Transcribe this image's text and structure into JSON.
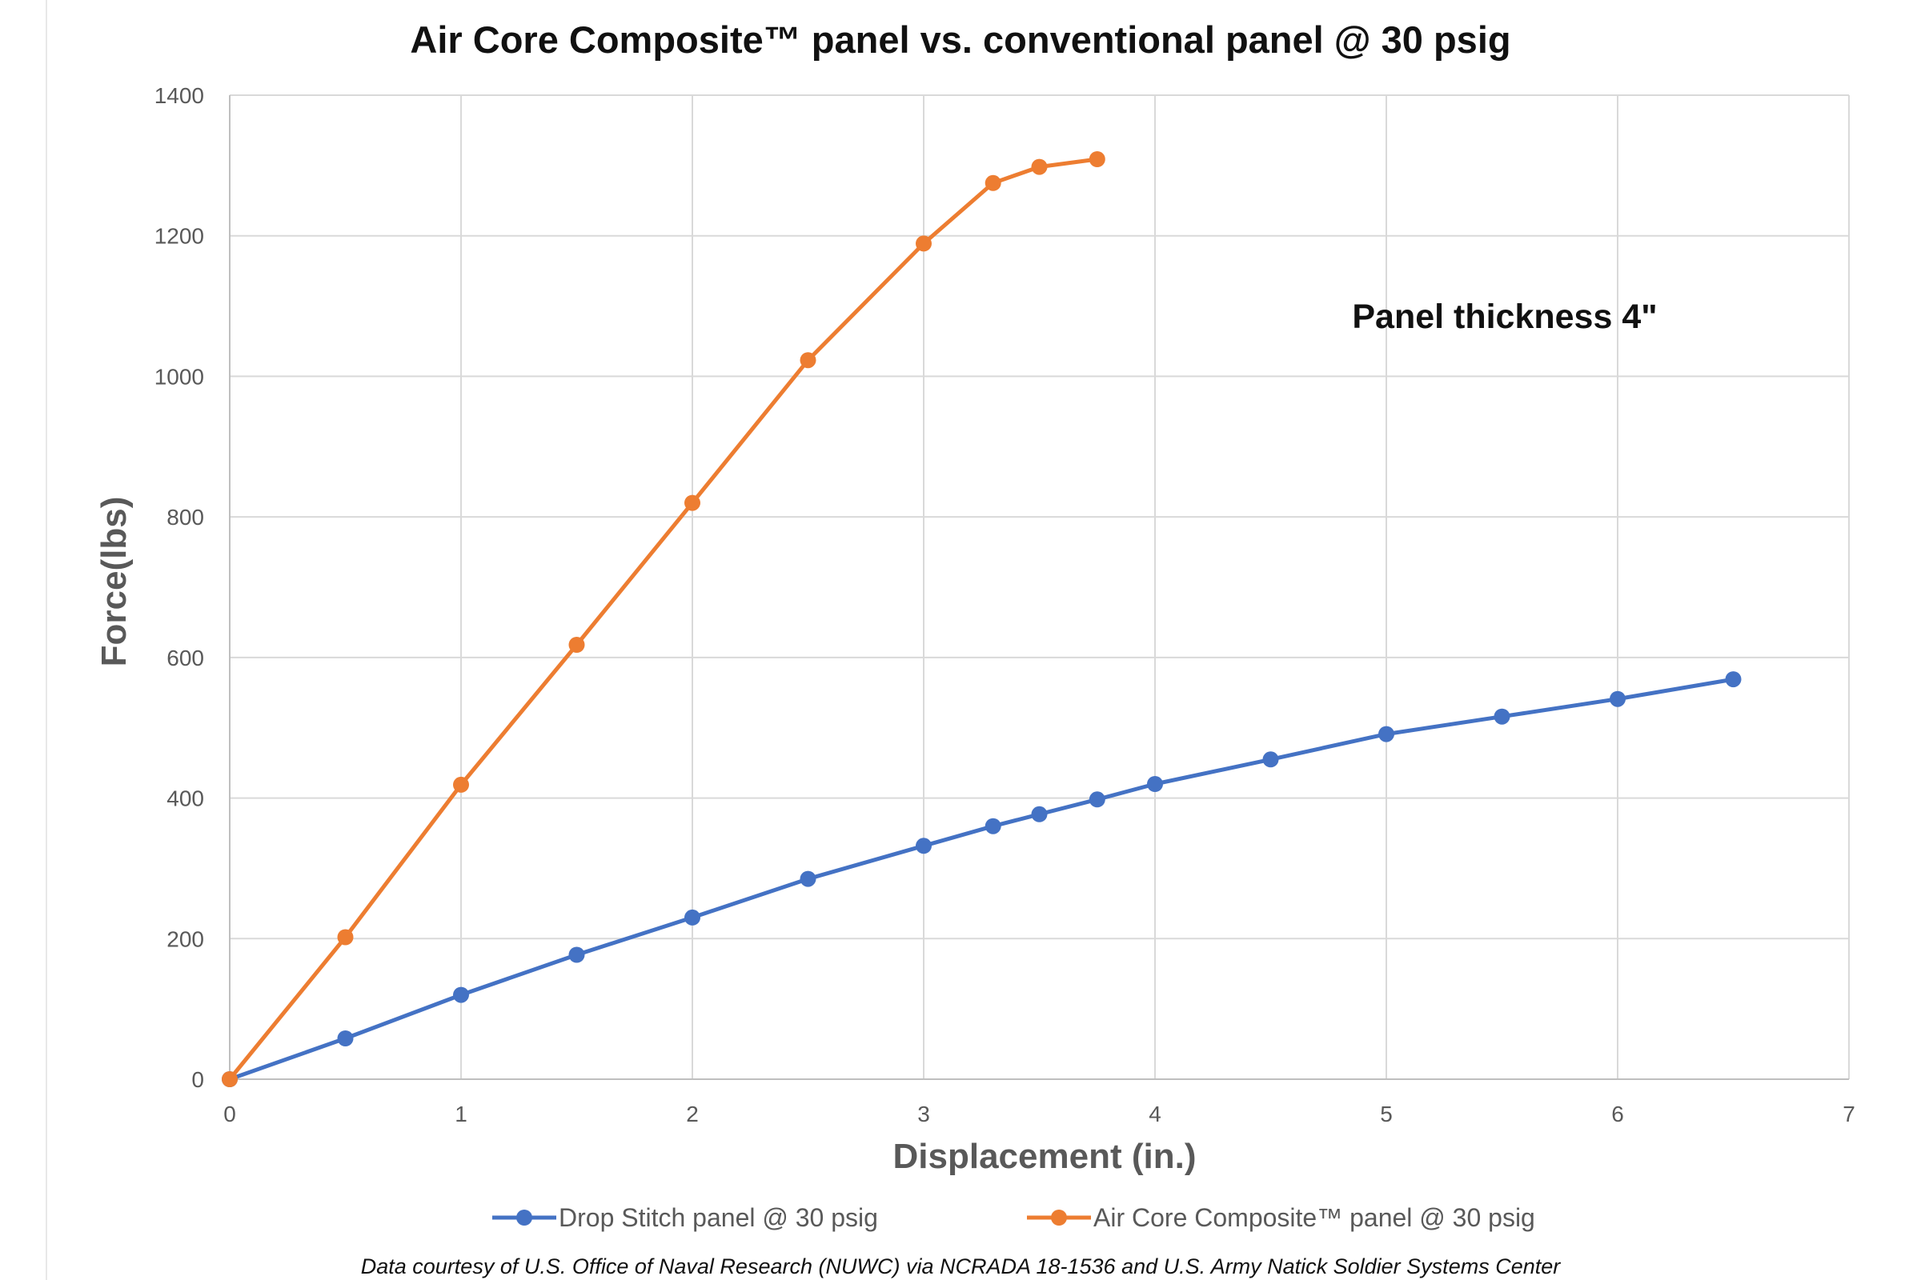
{
  "chart_data": {
    "type": "line",
    "title": "Air Core Composite™ panel vs. conventional panel  @ 30 psig",
    "xlabel": "Displacement (in.)",
    "ylabel": "Force(lbs)",
    "xlim": [
      0,
      7
    ],
    "ylim": [
      0,
      1400
    ],
    "x_ticks": [
      "0",
      "1",
      "2",
      "3",
      "4",
      "5",
      "6",
      "7"
    ],
    "y_ticks": [
      "0",
      "200",
      "400",
      "600",
      "800",
      "1000",
      "1200",
      "1400"
    ],
    "grid": true,
    "legend_position": "bottom",
    "annotation": "Panel thickness 4\"",
    "footnote": "Data courtesy of U.S. Office of Naval Research (NUWC) via NCRADA 18-1536 and U.S. Army Natick Soldier Systems Center",
    "series": [
      {
        "name": "Drop Stitch panel @ 30 psig",
        "color": "#4472c4",
        "x": [
          0,
          0.5,
          1,
          1.5,
          2,
          2.5,
          3,
          3.3,
          3.5,
          3.75,
          4,
          4.5,
          5,
          5.5,
          6,
          6.5
        ],
        "y": [
          0,
          58,
          120,
          177,
          230,
          285,
          332,
          360,
          377,
          398,
          420,
          455,
          491,
          516,
          541,
          569
        ]
      },
      {
        "name": "Air Core Composite™ panel @ 30 psig",
        "color": "#ed7d31",
        "x": [
          0,
          0.5,
          1,
          1.5,
          2,
          2.5,
          3,
          3.3,
          3.5,
          3.75
        ],
        "y": [
          0,
          202,
          419,
          618,
          820,
          1023,
          1189,
          1275,
          1298,
          1309
        ]
      }
    ]
  }
}
